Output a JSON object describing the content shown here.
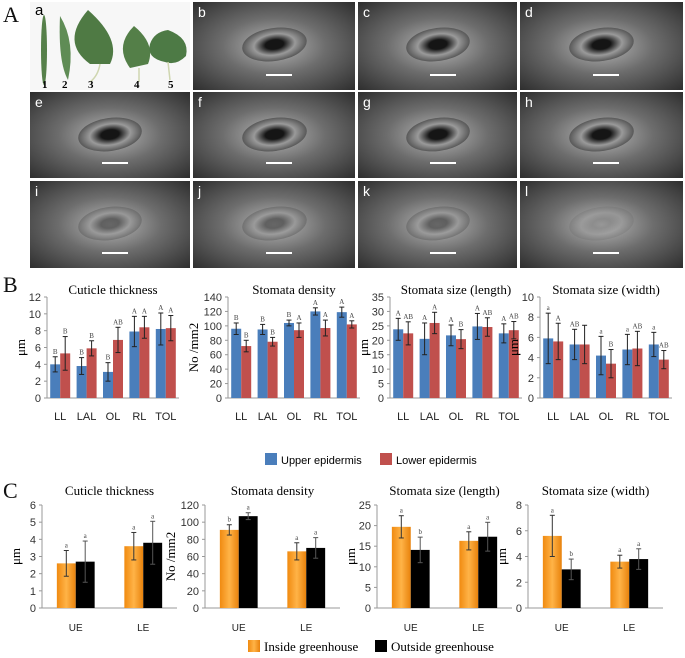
{
  "panel_labels": {
    "A": "A",
    "B": "B",
    "C": "C"
  },
  "micrographs": {
    "leaf_panel_label": "a",
    "leaf_numbers": [
      "1",
      "2",
      "3",
      "4",
      "5"
    ],
    "panel_letters": [
      "b",
      "c",
      "d",
      "e",
      "f",
      "g",
      "h",
      "i",
      "j",
      "k",
      "l"
    ]
  },
  "colors": {
    "upper": "#4a7ebb",
    "lower": "#c0504d",
    "inside": "#f39a28",
    "outside": "#000000",
    "leaf": "#4f7a44"
  },
  "chart_data": [
    {
      "panel": "B",
      "type": "bar",
      "title": "Cuticle thickness",
      "ylabel": "μm",
      "ylim": [
        0,
        12
      ],
      "ystep": 2,
      "categories": [
        "LL",
        "LAL",
        "OL",
        "RL",
        "TOL"
      ],
      "series": [
        {
          "name": "Upper epidermis",
          "values": [
            4.0,
            3.8,
            3.1,
            7.9,
            8.2
          ],
          "errors": [
            0.9,
            1.0,
            1.1,
            1.8,
            1.9
          ],
          "letters": [
            "B",
            "B",
            "B",
            "A",
            "A"
          ]
        },
        {
          "name": "Lower epidermis",
          "values": [
            5.3,
            5.9,
            6.9,
            8.4,
            8.3
          ],
          "errors": [
            2.0,
            0.9,
            1.5,
            1.3,
            1.5
          ],
          "letters": [
            "B",
            "B",
            "AB",
            "A",
            "A"
          ]
        }
      ]
    },
    {
      "panel": "B",
      "type": "bar",
      "title": "Stomata density",
      "ylabel": "No /mm2",
      "ylim": [
        0,
        140
      ],
      "ystep": 20,
      "categories": [
        "LL",
        "LAL",
        "OL",
        "RL",
        "TOL"
      ],
      "series": [
        {
          "name": "Upper epidermis",
          "values": [
            96,
            95,
            104,
            120,
            119
          ],
          "errors": [
            8,
            7,
            4,
            5,
            7
          ],
          "letters": [
            "B",
            "B",
            "B",
            "A",
            "A"
          ]
        },
        {
          "name": "Lower epidermis",
          "values": [
            72,
            78,
            94,
            97,
            102
          ],
          "errors": [
            8,
            6,
            10,
            11,
            5
          ],
          "letters": [
            "B",
            "B",
            "A",
            "A",
            "A"
          ]
        }
      ]
    },
    {
      "panel": "B",
      "type": "bar",
      "title": "Stomata size (length)",
      "ylabel": "μm",
      "ylim": [
        0,
        35
      ],
      "ystep": 5,
      "categories": [
        "LL",
        "LAL",
        "OL",
        "RL",
        "TOL"
      ],
      "series": [
        {
          "name": "Upper epidermis",
          "values": [
            23.8,
            20.5,
            21.7,
            24.8,
            22.4
          ],
          "errors": [
            3.8,
            5.5,
            3.6,
            4.5,
            3.3
          ],
          "letters": [
            "A",
            "A",
            "A",
            "A",
            "A"
          ]
        },
        {
          "name": "Lower epidermis",
          "values": [
            22.4,
            26.0,
            20.4,
            24.6,
            23.5
          ],
          "errors": [
            4.0,
            3.7,
            3.3,
            3.2,
            3.0
          ],
          "letters": [
            "AB",
            "A",
            "B",
            "AB",
            "AB"
          ]
        }
      ]
    },
    {
      "panel": "B",
      "type": "bar",
      "title": "Stomata size (width)",
      "ylabel": "μm",
      "ylim": [
        0,
        10
      ],
      "ystep": 2,
      "categories": [
        "LL",
        "LAL",
        "OL",
        "RL",
        "TOL"
      ],
      "series": [
        {
          "name": "Upper epidermis",
          "values": [
            5.9,
            5.3,
            4.2,
            4.8,
            5.3
          ],
          "errors": [
            2.5,
            1.5,
            1.9,
            1.5,
            1.2
          ],
          "letters": [
            "a",
            "AB",
            "a",
            "a",
            "a"
          ]
        },
        {
          "name": "Lower epidermis",
          "values": [
            5.6,
            5.3,
            3.4,
            4.9,
            3.8
          ],
          "errors": [
            1.8,
            1.9,
            1.4,
            1.7,
            0.9
          ],
          "letters": [
            "A",
            "",
            "B",
            "AB",
            "AB"
          ]
        }
      ]
    },
    {
      "panel": "C",
      "type": "bar",
      "title": "Cuticle thickness",
      "ylabel": "μm",
      "ylim": [
        0,
        6
      ],
      "ystep": 1,
      "categories": [
        "UE",
        "LE"
      ],
      "series": [
        {
          "name": "Inside greenhouse",
          "values": [
            2.6,
            3.6
          ],
          "errors": [
            0.75,
            0.8
          ],
          "letters": [
            "a",
            "a"
          ]
        },
        {
          "name": "Outside greenhouse",
          "values": [
            2.7,
            3.8
          ],
          "errors": [
            1.2,
            1.25
          ],
          "letters": [
            "a",
            "a"
          ]
        }
      ]
    },
    {
      "panel": "C",
      "type": "bar",
      "title": "Stomata density",
      "ylabel": "No /mm2",
      "ylim": [
        0,
        120
      ],
      "ystep": 20,
      "categories": [
        "UE",
        "LE"
      ],
      "series": [
        {
          "name": "Inside greenhouse",
          "values": [
            91,
            66
          ],
          "errors": [
            6,
            10
          ],
          "letters": [
            "b",
            "a"
          ]
        },
        {
          "name": "Outside greenhouse",
          "values": [
            107,
            70
          ],
          "errors": [
            4,
            12
          ],
          "letters": [
            "a",
            "a"
          ]
        }
      ]
    },
    {
      "panel": "C",
      "type": "bar",
      "title": "Stomata size (length)",
      "ylabel": "μm",
      "ylim": [
        0,
        25
      ],
      "ystep": 5,
      "categories": [
        "UE",
        "LE"
      ],
      "series": [
        {
          "name": "Inside greenhouse",
          "values": [
            19.7,
            16.3
          ],
          "errors": [
            2.7,
            2.2
          ],
          "letters": [
            "a",
            "a"
          ]
        },
        {
          "name": "Outside greenhouse",
          "values": [
            14.1,
            17.3
          ],
          "errors": [
            3.1,
            3.5
          ],
          "letters": [
            "b",
            "a"
          ]
        }
      ]
    },
    {
      "panel": "C",
      "type": "bar",
      "title": "Stomata size (width)",
      "ylabel": "μm",
      "ylim": [
        0,
        8
      ],
      "ystep": 2,
      "categories": [
        "UE",
        "LE"
      ],
      "series": [
        {
          "name": "Inside greenhouse",
          "values": [
            5.6,
            3.6
          ],
          "errors": [
            1.6,
            0.5
          ],
          "letters": [
            "a",
            "a"
          ]
        },
        {
          "name": "Outside greenhouse",
          "values": [
            3.0,
            3.8
          ],
          "errors": [
            0.8,
            0.8
          ],
          "letters": [
            "b",
            "a"
          ]
        }
      ]
    }
  ],
  "legends": {
    "B": [
      "Upper epidermis",
      "Lower epidermis"
    ],
    "C": [
      "Inside greenhouse",
      "Outside greenhouse"
    ]
  }
}
